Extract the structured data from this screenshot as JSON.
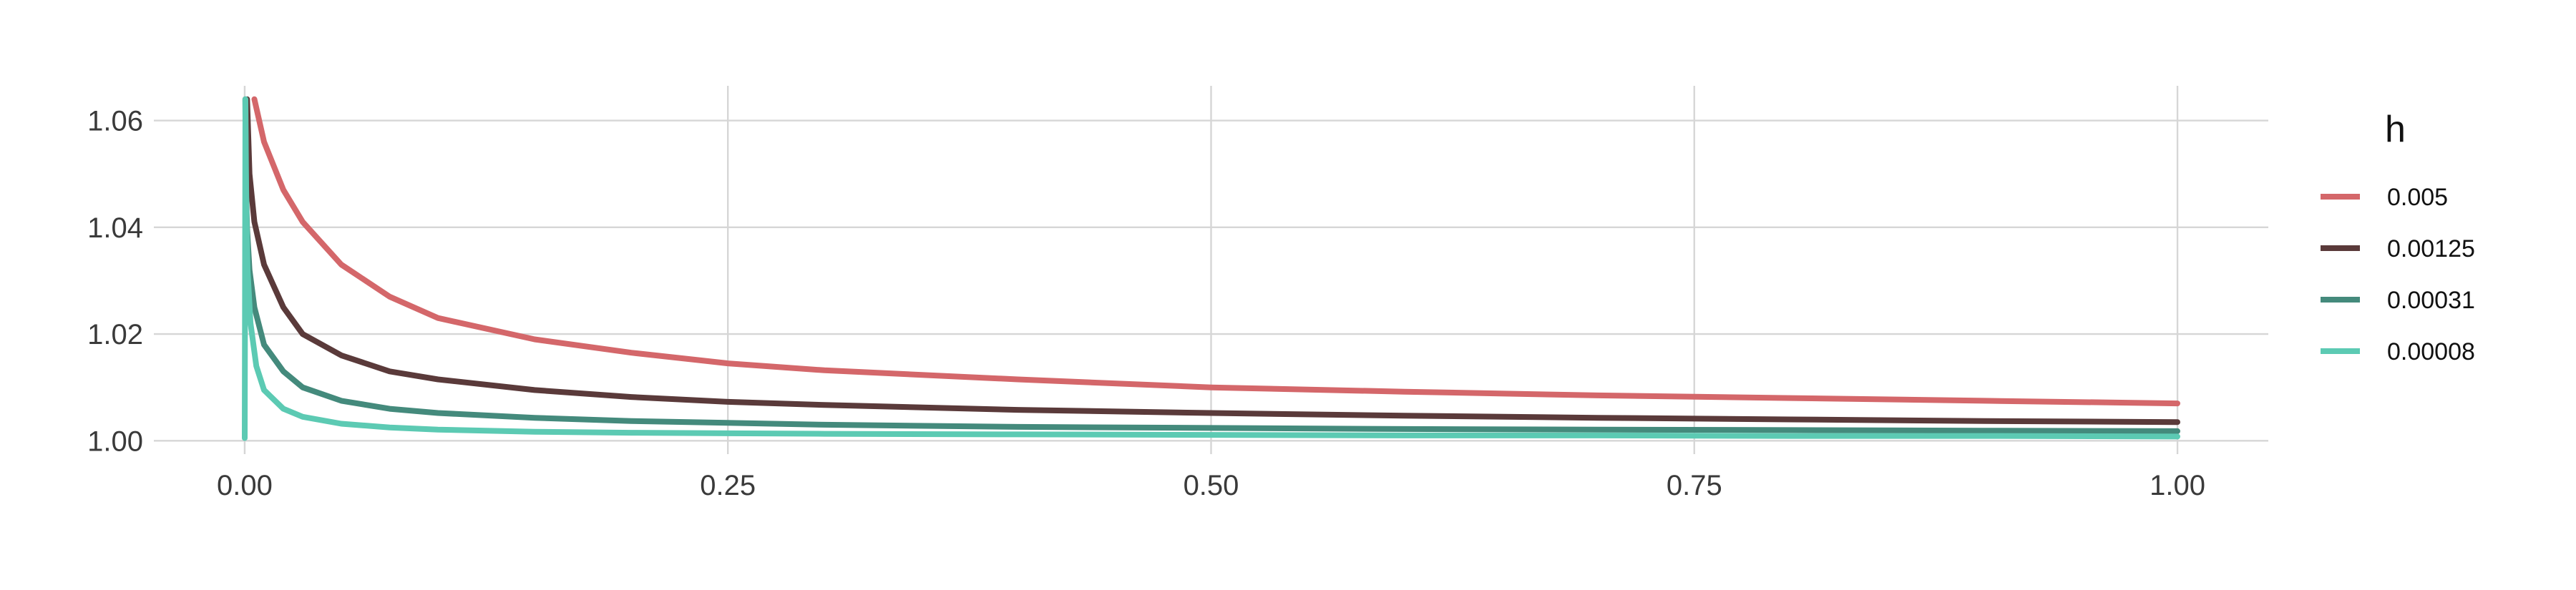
{
  "chart_data": {
    "type": "line",
    "title": "",
    "xlabel": "",
    "ylabel": "",
    "xlim": [
      -0.047,
      1.047
    ],
    "ylim": [
      0.9975,
      1.0665
    ],
    "x_ticks": [
      0.0,
      0.25,
      0.5,
      0.75,
      1.0
    ],
    "x_tick_labels": [
      "0.00",
      "0.25",
      "0.50",
      "0.75",
      "1.00"
    ],
    "y_ticks": [
      1.0,
      1.02,
      1.04,
      1.06
    ],
    "y_tick_labels": [
      "1.00",
      "1.02",
      "1.04",
      "1.06"
    ],
    "grid": true,
    "legend": {
      "title": "h",
      "position": "right"
    },
    "series": [
      {
        "name": "0.005",
        "color": "#d4676a",
        "x": [
          0.005,
          0.01,
          0.02,
          0.03,
          0.05,
          0.075,
          0.1,
          0.15,
          0.2,
          0.25,
          0.3,
          0.4,
          0.5,
          0.6,
          0.7,
          0.8,
          0.9,
          1.0
        ],
        "y": [
          1.064,
          1.056,
          1.047,
          1.041,
          1.033,
          1.027,
          1.023,
          1.019,
          1.0165,
          1.0145,
          1.0132,
          1.0115,
          1.01,
          1.0092,
          1.0085,
          1.008,
          1.0075,
          1.007
        ]
      },
      {
        "name": "0.00125",
        "color": "#5a3a3a",
        "x": [
          0.00125,
          0.0025,
          0.005,
          0.01,
          0.02,
          0.03,
          0.05,
          0.075,
          0.1,
          0.15,
          0.2,
          0.25,
          0.3,
          0.4,
          0.5,
          0.6,
          0.7,
          0.8,
          0.9,
          1.0
        ],
        "y": [
          1.064,
          1.05,
          1.041,
          1.033,
          1.025,
          1.02,
          1.016,
          1.013,
          1.0115,
          1.0095,
          1.0082,
          1.0073,
          1.0067,
          1.0058,
          1.0052,
          1.0047,
          1.0043,
          1.004,
          1.0037,
          1.0035
        ]
      },
      {
        "name": "0.00031",
        "color": "#448a7c",
        "x": [
          0.0003,
          0.0006,
          0.0012,
          0.0025,
          0.005,
          0.01,
          0.02,
          0.03,
          0.05,
          0.075,
          0.1,
          0.15,
          0.2,
          0.3,
          0.4,
          0.5,
          0.6,
          0.7,
          0.8,
          0.9,
          1.0
        ],
        "y": [
          1.064,
          1.05,
          1.04,
          1.032,
          1.025,
          1.018,
          1.013,
          1.01,
          1.0075,
          1.006,
          1.0052,
          1.0043,
          1.0037,
          1.003,
          1.0026,
          1.0024,
          1.0022,
          1.0021,
          1.002,
          1.0019,
          1.0018
        ]
      },
      {
        "name": "0.00008",
        "color": "#5ccab3",
        "x": [
          0.0,
          0.0004,
          0.0008,
          0.0015,
          0.003,
          0.006,
          0.01,
          0.02,
          0.03,
          0.05,
          0.075,
          0.1,
          0.15,
          0.2,
          0.3,
          0.4,
          0.5,
          0.6,
          0.7,
          0.8,
          0.9,
          1.0
        ],
        "y": [
          1.0005,
          1.064,
          1.045,
          1.032,
          1.022,
          1.014,
          1.0095,
          1.006,
          1.0045,
          1.0032,
          1.0025,
          1.0021,
          1.0017,
          1.0015,
          1.0013,
          1.0012,
          1.0011,
          1.001,
          1.001,
          1.0009,
          1.0009,
          1.0008
        ]
      }
    ]
  }
}
